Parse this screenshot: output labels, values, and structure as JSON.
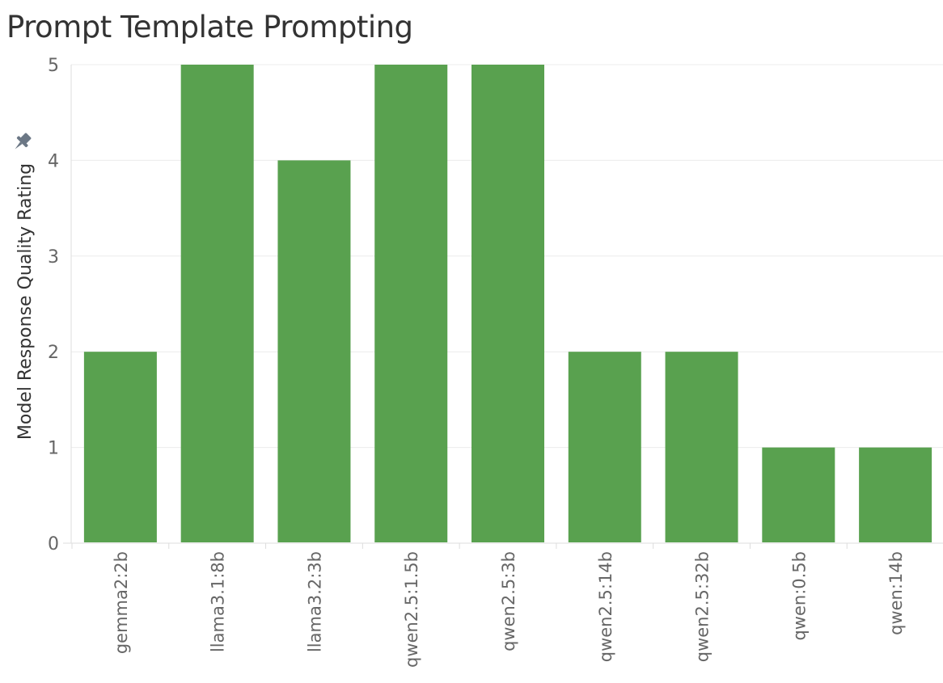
{
  "chart_data": {
    "type": "bar",
    "title": "Prompt Template Prompting",
    "xlabel": "",
    "ylabel": "Model Response Quality Rating",
    "categories": [
      "gemma2:2b",
      "llama3.1:8b",
      "llama3.2:3b",
      "qwen2.5:1.5b",
      "qwen2.5:3b",
      "qwen2.5:14b",
      "qwen2.5:32b",
      "qwen:0.5b",
      "qwen:14b"
    ],
    "values": [
      2,
      5,
      4,
      5,
      5,
      2,
      2,
      1,
      1
    ],
    "ylim": [
      0,
      5
    ],
    "yticks": [
      0,
      1,
      2,
      3,
      4,
      5
    ],
    "grid": true,
    "bar_color": "#59a14f",
    "pin_icon": "pin-icon"
  }
}
